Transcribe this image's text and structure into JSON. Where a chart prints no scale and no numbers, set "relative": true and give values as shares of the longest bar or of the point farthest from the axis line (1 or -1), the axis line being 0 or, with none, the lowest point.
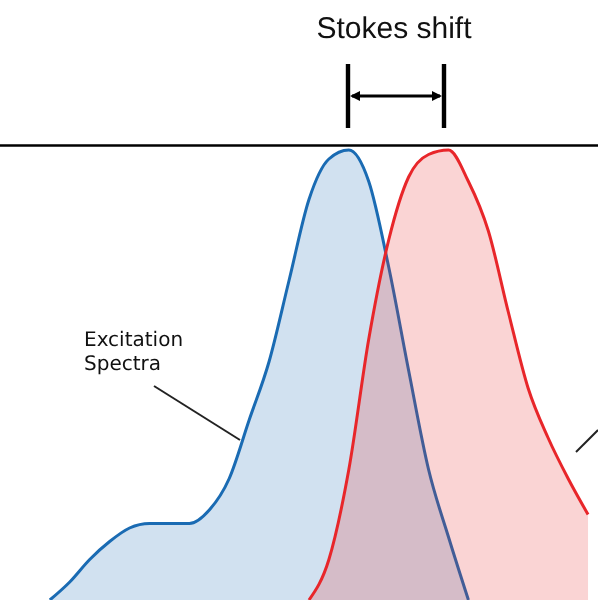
{
  "chart_data": {
    "type": "area",
    "relative": true,
    "categories": [
      null,
      null,
      null,
      null,
      null,
      null,
      null,
      null,
      null,
      null,
      null,
      null,
      null,
      null,
      null,
      null,
      null,
      null,
      null,
      null,
      null,
      null,
      null,
      null,
      null,
      null,
      null,
      null,
      null,
      null
    ],
    "series": [
      {
        "name": "Excitation Spectra",
        "color": "#1a6bb3",
        "values": [
          null,
          null,
          0,
          0.04,
          0.09,
          0.13,
          0.16,
          0.17,
          0.17,
          0.17,
          0.2,
          0.27,
          0.4,
          0.53,
          0.71,
          0.89,
          0.98,
          1,
          0.93,
          0.74,
          0.51,
          0.29,
          0.14,
          0,
          null,
          null,
          null,
          null,
          null,
          null
        ]
      },
      {
        "color": "#e8262a",
        "values": [
          null,
          null,
          null,
          null,
          null,
          null,
          null,
          null,
          null,
          null,
          null,
          null,
          null,
          null,
          null,
          0,
          0.09,
          0.29,
          0.58,
          0.8,
          0.94,
          0.99,
          1,
          0.93,
          0.82,
          0.64,
          0.47,
          0.36,
          0.27,
          0.19
        ]
      }
    ],
    "ref_lines": [
      {
        "axis": "y",
        "value": 1.01,
        "color": "#000000"
      }
    ],
    "annotations": [
      "Stokes shift"
    ]
  }
}
